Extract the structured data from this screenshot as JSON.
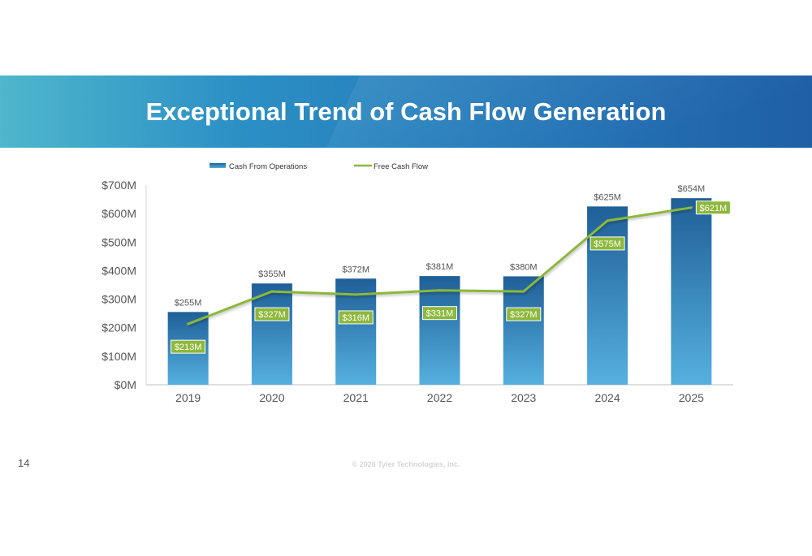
{
  "slide": {
    "title": "Exceptional Trend of Cash Flow Generation",
    "page_number": "14",
    "copyright": "© 2026 Tyler Technologies, Inc."
  },
  "colors": {
    "bar_top": "#1f5f97",
    "bar_bottom": "#55b0e0",
    "line": "#8db83b",
    "fcf_label_bg": "#8db83b",
    "axis_text": "#555555"
  },
  "chart_data": {
    "type": "bar",
    "categories": [
      "2019",
      "2020",
      "2021",
      "2022",
      "2023",
      "2024",
      "2025"
    ],
    "series": [
      {
        "name": "Cash From Operations",
        "type": "bar",
        "values": [
          255,
          355,
          372,
          381,
          380,
          625,
          654
        ],
        "labels": [
          "$255M",
          "$355M",
          "$372M",
          "$381M",
          "$380M",
          "$625M",
          "$654M"
        ]
      },
      {
        "name": "Free Cash Flow",
        "type": "line",
        "values": [
          213,
          327,
          316,
          331,
          327,
          575,
          621
        ],
        "labels": [
          "$213M",
          "$327M",
          "$316M",
          "$331M",
          "$327M",
          "$575M",
          "$621M"
        ]
      }
    ],
    "y_ticks": [
      0,
      100,
      200,
      300,
      400,
      500,
      600,
      700
    ],
    "y_tick_labels": [
      "$0M",
      "$100M",
      "$200M",
      "$300M",
      "$400M",
      "$500M",
      "$600M",
      "$700M"
    ],
    "ylim": [
      0,
      700
    ],
    "legend_position": "top-left",
    "grid": false
  }
}
